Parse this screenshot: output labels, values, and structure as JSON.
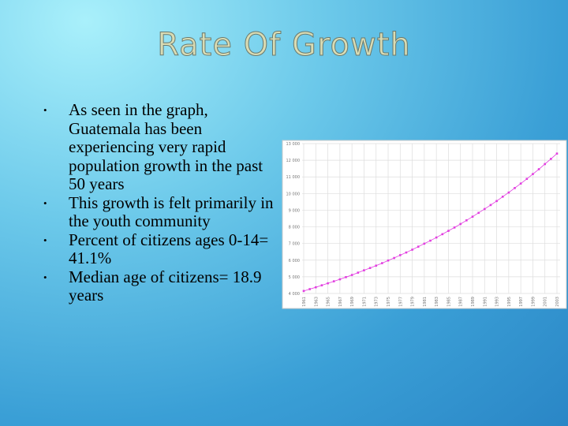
{
  "title": "Rate Of Growth",
  "bullets": [
    "As seen in the graph, Guatemala has been experiencing very rapid population growth in the past 50 years",
    "This growth is felt primarily in the youth community",
    "Percent of citizens ages 0-14= 41.1%",
    "Median age of citizens= 18.9 years"
  ],
  "chart_data": {
    "type": "line",
    "color": "#e23ee0",
    "grid": true,
    "x": [
      1961,
      1962,
      1963,
      1964,
      1965,
      1966,
      1967,
      1968,
      1969,
      1970,
      1971,
      1972,
      1973,
      1974,
      1975,
      1976,
      1977,
      1978,
      1979,
      1980,
      1981,
      1982,
      1983,
      1984,
      1985,
      1986,
      1987,
      1988,
      1989,
      1990,
      1991,
      1992,
      1993,
      1994,
      1995,
      1996,
      1997,
      1998,
      1999,
      2000,
      2001,
      2002,
      2003
    ],
    "values": [
      4150,
      4260,
      4370,
      4490,
      4610,
      4730,
      4850,
      4980,
      5110,
      5250,
      5390,
      5530,
      5670,
      5820,
      5980,
      6130,
      6300,
      6460,
      6630,
      6810,
      6990,
      7170,
      7360,
      7560,
      7760,
      7960,
      8170,
      8390,
      8610,
      8840,
      9070,
      9310,
      9550,
      9810,
      10060,
      10330,
      10600,
      10880,
      11170,
      11460,
      11770,
      12080,
      12400
    ],
    "xlim": [
      1961,
      2003
    ],
    "xticks": [
      1961,
      1963,
      1965,
      1967,
      1969,
      1971,
      1973,
      1975,
      1977,
      1979,
      1981,
      1983,
      1985,
      1987,
      1989,
      1991,
      1993,
      1995,
      1997,
      1999,
      2001,
      2003
    ],
    "ylim": [
      4000,
      13000
    ],
    "yticks": [
      {
        "value": 4000,
        "label": "4 000"
      },
      {
        "value": 5000,
        "label": "5 000"
      },
      {
        "value": 6000,
        "label": "6 000"
      },
      {
        "value": 7000,
        "label": "7 000"
      },
      {
        "value": 8000,
        "label": "8 000"
      },
      {
        "value": 9000,
        "label": "9 000"
      },
      {
        "value": 10000,
        "label": "10 000"
      },
      {
        "value": 11000,
        "label": "11 000"
      },
      {
        "value": 12000,
        "label": "12 000"
      },
      {
        "value": 13000,
        "label": "13 000"
      }
    ]
  }
}
